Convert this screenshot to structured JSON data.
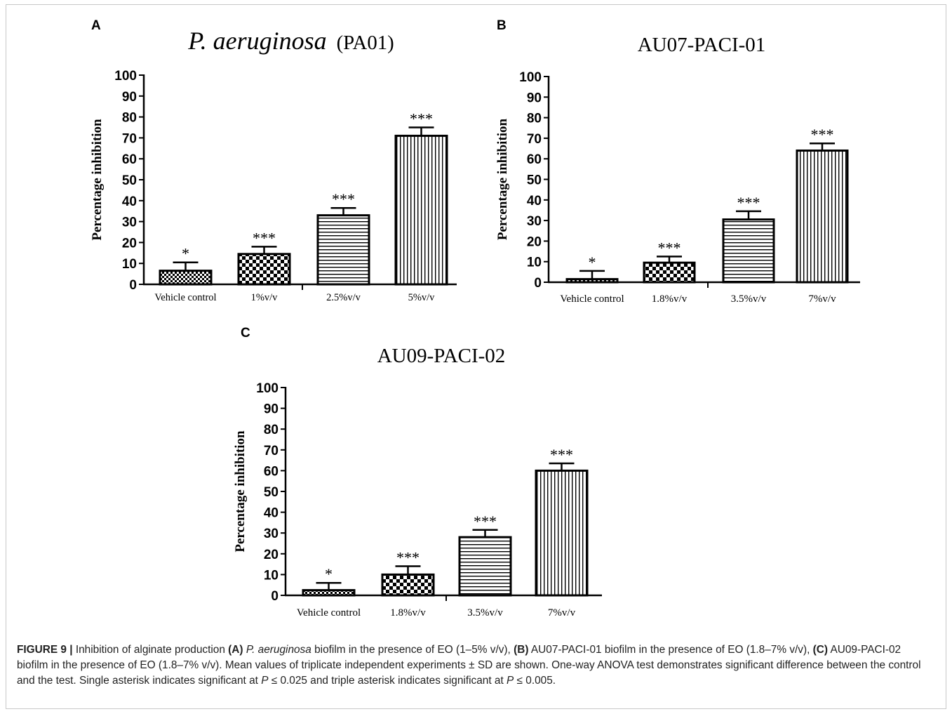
{
  "chart_data": [
    {
      "panel": "A",
      "type": "bar",
      "title": "P. aeruginosa",
      "title_suffix": "(PA01)",
      "title_italic": true,
      "ylabel": "Percentage inhibition",
      "ylim": [
        0,
        100
      ],
      "yticks": [
        "0",
        "10",
        "20",
        "30",
        "40",
        "50",
        "60",
        "70",
        "80",
        "90",
        "100"
      ],
      "categories": [
        "Vehicle control",
        "1%v/v",
        "2.5%v/v",
        "5%v/v"
      ],
      "values": [
        6.5,
        14.5,
        33,
        71
      ],
      "errors": [
        4,
        3.5,
        3.5,
        4
      ],
      "significance": [
        "*",
        "***",
        "***",
        "***"
      ],
      "patterns": [
        "checker-fine",
        "checker-coarse",
        "horizontal",
        "vertical"
      ]
    },
    {
      "panel": "B",
      "type": "bar",
      "title": "AU07-PACI-01",
      "ylabel": "Percentage inhibition",
      "ylim": [
        0,
        100
      ],
      "yticks": [
        "0",
        "10",
        "20",
        "30",
        "40",
        "50",
        "60",
        "70",
        "80",
        "90",
        "100"
      ],
      "categories": [
        "Vehicle control",
        "1.8%v/v",
        "3.5%v/v",
        "7%v/v"
      ],
      "values": [
        1.5,
        9.5,
        30.5,
        64
      ],
      "errors": [
        4,
        3,
        4,
        3.5
      ],
      "significance": [
        "*",
        "***",
        "***",
        "***"
      ],
      "patterns": [
        "checker-fine",
        "checker-coarse",
        "horizontal",
        "vertical"
      ]
    },
    {
      "panel": "C",
      "type": "bar",
      "title": "AU09-PACI-02",
      "ylabel": "Percentage inhibition",
      "ylim": [
        0,
        100
      ],
      "yticks": [
        "0",
        "10",
        "20",
        "30",
        "40",
        "50",
        "60",
        "70",
        "80",
        "90",
        "100"
      ],
      "categories": [
        "Vehicle control",
        "1.8%v/v",
        "3.5%v/v",
        "7%v/v"
      ],
      "values": [
        2.5,
        10,
        28,
        60
      ],
      "errors": [
        3.5,
        4,
        3.5,
        3.5
      ],
      "significance": [
        "*",
        "***",
        "***",
        "***"
      ],
      "patterns": [
        "checker-fine",
        "checker-coarse",
        "horizontal",
        "vertical"
      ]
    }
  ],
  "caption": {
    "label": "FIGURE 9 |",
    "t1": " Inhibition of alginate production ",
    "a": "(A)",
    "t2": " ",
    "species": "P. aeruginosa",
    "t3": " biofilm in the presence of EO (1–5% v/v), ",
    "b": "(B)",
    "t4": " AU07-PACI-01 biofilm in the presence of EO (1.8–7% v/v), ",
    "c": "(C)",
    "t5": " AU09-PACI-02 biofilm in the presence of EO (1.8–7% v/v). Mean values of triplicate independent experiments ± SD are shown. One-way ANOVA test demonstrates significant difference between the control and the test. Single asterisk indicates significant at ",
    "p1": "P",
    "t6": " ≤ 0.025 and triple asterisk indicates significant at ",
    "p2": "P",
    "t7": " ≤ 0.005."
  }
}
